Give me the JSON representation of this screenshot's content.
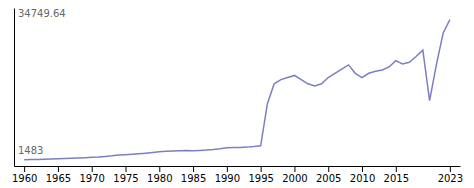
{
  "chart_data": {
    "type": "line",
    "x": [
      1960,
      1961,
      1962,
      1963,
      1964,
      1965,
      1966,
      1967,
      1968,
      1969,
      1970,
      1971,
      1972,
      1973,
      1974,
      1975,
      1976,
      1977,
      1978,
      1979,
      1980,
      1981,
      1982,
      1983,
      1984,
      1985,
      1986,
      1987,
      1988,
      1989,
      1990,
      1991,
      1992,
      1993,
      1994,
      1995,
      1996,
      1997,
      1998,
      1999,
      2000,
      2001,
      2002,
      2003,
      2004,
      2005,
      2006,
      2007,
      2008,
      2009,
      2010,
      2011,
      2012,
      2013,
      2014,
      2015,
      2016,
      2017,
      2018,
      2019,
      2020,
      2021,
      2022,
      2023
    ],
    "values": [
      1483,
      1520,
      1560,
      1590,
      1640,
      1700,
      1760,
      1820,
      1890,
      1970,
      2060,
      2150,
      2280,
      2420,
      2600,
      2680,
      2780,
      2900,
      3050,
      3200,
      3380,
      3500,
      3560,
      3600,
      3650,
      3610,
      3680,
      3780,
      3920,
      4100,
      4350,
      4380,
      4400,
      4480,
      4600,
      4800,
      14800,
      19500,
      20500,
      21000,
      21500,
      20500,
      19500,
      19000,
      19500,
      21000,
      22000,
      23000,
      24000,
      22000,
      21000,
      22000,
      22500,
      22800,
      23500,
      25000,
      24200,
      24600,
      26000,
      27500,
      15500,
      24000,
      31500,
      34749
    ],
    "color": "#7b7fc4",
    "xlim": [
      1958.5,
      2024.5
    ],
    "ylim": [
      0,
      37500
    ],
    "xticks": [
      1960,
      1965,
      1970,
      1975,
      1980,
      1985,
      1990,
      1995,
      2000,
      2005,
      2010,
      2015,
      2023
    ],
    "annotations": [
      "34749.64",
      "1483"
    ],
    "grid": false,
    "tick_labels": "x"
  }
}
